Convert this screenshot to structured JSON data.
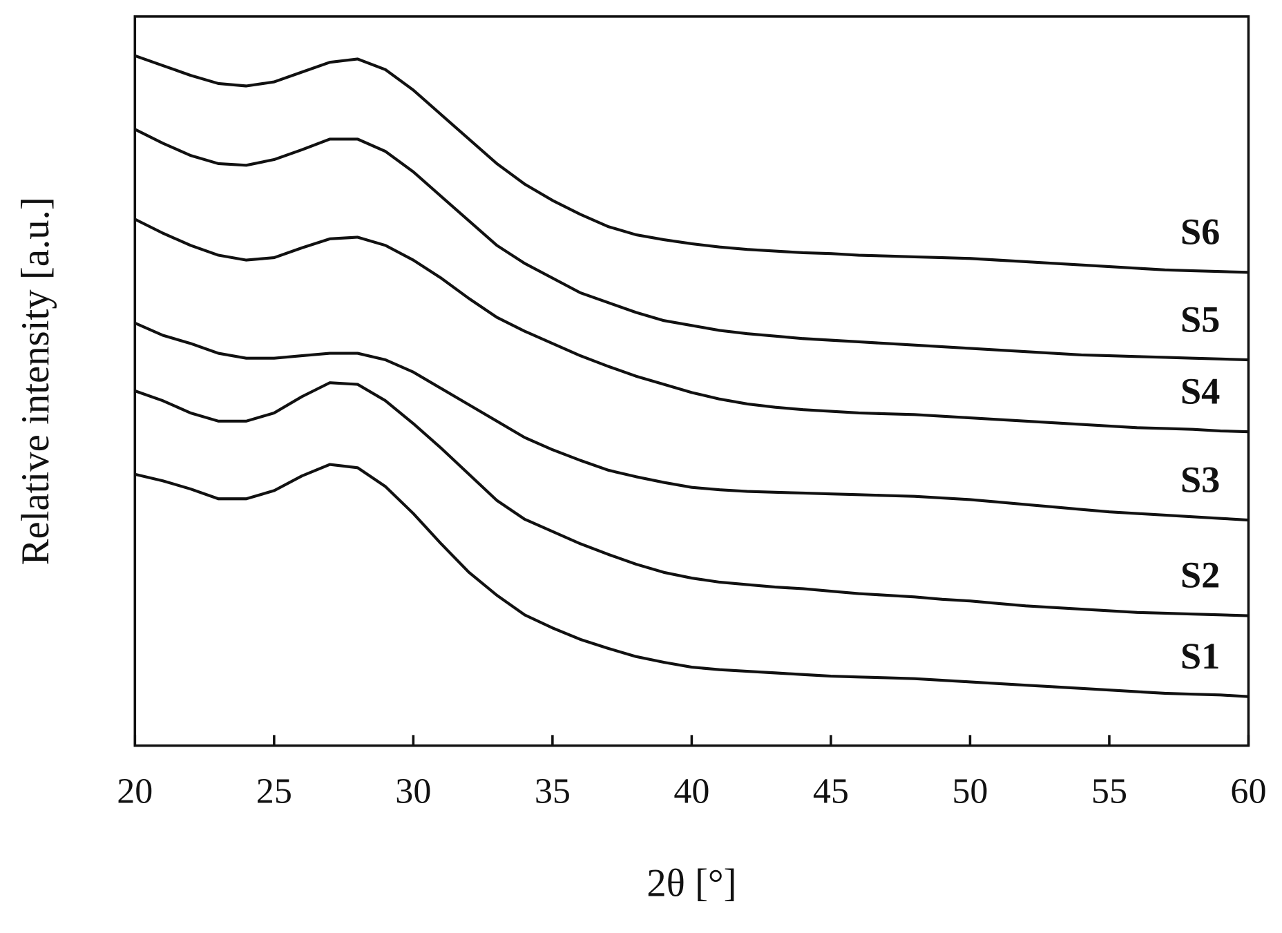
{
  "chart_data": {
    "type": "line",
    "xlabel": "2θ [°]",
    "ylabel": "Relative intensity [a.u.]",
    "xlim": [
      20,
      60
    ],
    "xticks": [
      20,
      25,
      30,
      35,
      40,
      45,
      50,
      55,
      60
    ],
    "ylim": [
      0,
      892
    ],
    "x": [
      20,
      21,
      22,
      23,
      24,
      25,
      26,
      27,
      28,
      29,
      30,
      31,
      32,
      33,
      34,
      35,
      36,
      37,
      38,
      39,
      40,
      41,
      42,
      43,
      44,
      45,
      46,
      47,
      48,
      49,
      50,
      51,
      52,
      53,
      54,
      55,
      56,
      57,
      58,
      59,
      60
    ],
    "series": [
      {
        "name": "S1",
        "color": "#111111",
        "values": [
          332,
          324,
          314,
          302,
          302,
          312,
          330,
          344,
          340,
          317,
          284,
          247,
          212,
          184,
          160,
          144,
          130,
          119,
          109,
          102,
          96,
          93,
          91,
          89,
          87,
          85,
          84,
          83,
          82,
          80,
          78,
          76,
          74,
          72,
          70,
          68,
          66,
          64,
          63,
          62,
          60
        ]
      },
      {
        "name": "S2",
        "color": "#111111",
        "values": [
          434,
          422,
          407,
          397,
          397,
          407,
          427,
          444,
          442,
          422,
          394,
          364,
          332,
          300,
          277,
          262,
          247,
          234,
          222,
          212,
          205,
          200,
          197,
          194,
          192,
          189,
          186,
          184,
          182,
          179,
          177,
          174,
          171,
          169,
          167,
          165,
          163,
          162,
          161,
          160,
          159
        ]
      },
      {
        "name": "S3",
        "color": "#111111",
        "values": [
          517,
          502,
          492,
          480,
          474,
          474,
          477,
          480,
          480,
          472,
          457,
          437,
          417,
          397,
          377,
          362,
          349,
          337,
          329,
          322,
          316,
          313,
          311,
          310,
          309,
          308,
          307,
          306,
          305,
          303,
          301,
          298,
          295,
          292,
          289,
          286,
          284,
          282,
          280,
          278,
          276
        ]
      },
      {
        "name": "S4",
        "color": "#111111",
        "values": [
          644,
          627,
          612,
          600,
          594,
          597,
          609,
          620,
          622,
          612,
          594,
          572,
          547,
          524,
          507,
          492,
          477,
          464,
          452,
          442,
          432,
          424,
          418,
          414,
          411,
          409,
          407,
          406,
          405,
          403,
          401,
          399,
          397,
          395,
          393,
          391,
          389,
          388,
          387,
          385,
          384
        ]
      },
      {
        "name": "S5",
        "color": "#111111",
        "values": [
          754,
          737,
          722,
          712,
          710,
          717,
          729,
          742,
          742,
          727,
          702,
          672,
          642,
          612,
          590,
          572,
          554,
          542,
          530,
          520,
          514,
          508,
          504,
          501,
          498,
          496,
          494,
          492,
          490,
          488,
          486,
          484,
          482,
          480,
          478,
          477,
          476,
          475,
          474,
          473,
          472
        ]
      },
      {
        "name": "S6",
        "color": "#111111",
        "values": [
          844,
          832,
          820,
          810,
          807,
          812,
          824,
          836,
          840,
          827,
          802,
          772,
          742,
          712,
          687,
          667,
          650,
          635,
          625,
          619,
          614,
          610,
          607,
          605,
          603,
          602,
          600,
          599,
          598,
          597,
          596,
          594,
          592,
          590,
          588,
          586,
          584,
          582,
          581,
          580,
          579
        ]
      }
    ]
  }
}
